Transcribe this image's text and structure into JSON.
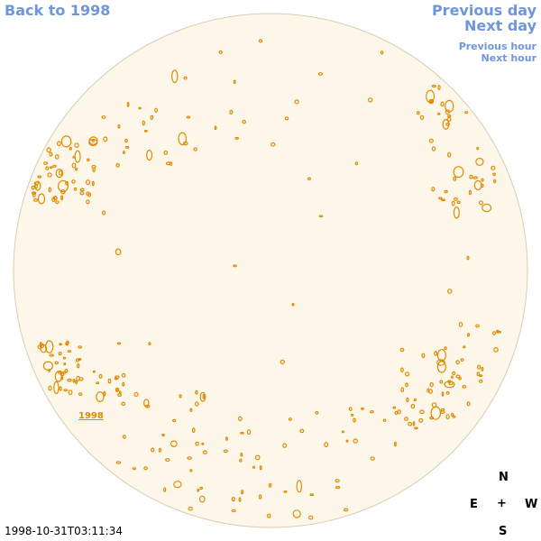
{
  "nav": {
    "back_label": "Back to 1998",
    "previous_day": "Previous day",
    "next_day": "Next day",
    "previous_hour": "Previous hour",
    "next_hour": "Next hour"
  },
  "disk": {
    "fill_color": "#fdf7ea",
    "rim_color": "#d8cdb5",
    "contour_color": "#e08a00",
    "year_link": "1998"
  },
  "compass": {
    "north": "N",
    "east": "E",
    "center": "+",
    "west": "W",
    "south": "S"
  },
  "timestamp": "1998-10-31T03:11:34"
}
